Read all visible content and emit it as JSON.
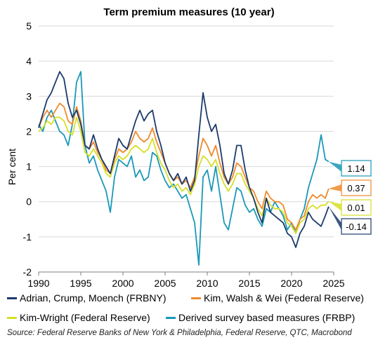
{
  "chart_data": {
    "type": "line",
    "title": "Term premium measures (10 year)",
    "ylabel": "Per cent",
    "xlabel": "",
    "xlim": [
      1990,
      2025
    ],
    "ylim": [
      -2,
      5
    ],
    "x_ticks": [
      "1990",
      "1995",
      "2000",
      "2005",
      "2010",
      "2015",
      "2020",
      "2025"
    ],
    "y_ticks": [
      "-2",
      "-1",
      "0",
      "1",
      "2",
      "3",
      "4",
      "5"
    ],
    "grid": "horizontal",
    "series": [
      {
        "name": "Adrian, Crump, Moench (FRBNY)",
        "color": "#1b3a6b",
        "end_label": "-0.14",
        "points": [
          [
            1990.0,
            2.1
          ],
          [
            1990.5,
            2.5
          ],
          [
            1991.0,
            2.9
          ],
          [
            1991.5,
            3.1
          ],
          [
            1992.0,
            3.4
          ],
          [
            1992.5,
            3.7
          ],
          [
            1993.0,
            3.5
          ],
          [
            1993.5,
            2.8
          ],
          [
            1994.0,
            2.4
          ],
          [
            1994.5,
            2.6
          ],
          [
            1995.0,
            2.2
          ],
          [
            1995.5,
            1.6
          ],
          [
            1996.0,
            1.5
          ],
          [
            1996.5,
            1.9
          ],
          [
            1997.0,
            1.5
          ],
          [
            1997.5,
            1.2
          ],
          [
            1998.0,
            1.0
          ],
          [
            1998.5,
            0.8
          ],
          [
            1999.0,
            1.3
          ],
          [
            1999.5,
            1.8
          ],
          [
            2000.0,
            1.6
          ],
          [
            2000.5,
            1.5
          ],
          [
            2001.0,
            1.9
          ],
          [
            2001.5,
            2.3
          ],
          [
            2002.0,
            2.6
          ],
          [
            2002.5,
            2.3
          ],
          [
            2003.0,
            2.5
          ],
          [
            2003.5,
            2.6
          ],
          [
            2004.0,
            2.0
          ],
          [
            2004.5,
            1.6
          ],
          [
            2005.0,
            1.1
          ],
          [
            2005.5,
            0.8
          ],
          [
            2006.0,
            0.6
          ],
          [
            2006.5,
            0.8
          ],
          [
            2007.0,
            0.5
          ],
          [
            2007.5,
            0.7
          ],
          [
            2008.0,
            0.3
          ],
          [
            2008.5,
            0.6
          ],
          [
            2009.0,
            1.9
          ],
          [
            2009.5,
            3.1
          ],
          [
            2010.0,
            2.4
          ],
          [
            2010.5,
            2.0
          ],
          [
            2011.0,
            2.2
          ],
          [
            2011.5,
            1.6
          ],
          [
            2012.0,
            0.8
          ],
          [
            2012.5,
            0.5
          ],
          [
            2013.0,
            0.9
          ],
          [
            2013.5,
            1.6
          ],
          [
            2014.0,
            1.6
          ],
          [
            2014.5,
            0.9
          ],
          [
            2015.0,
            0.4
          ],
          [
            2015.5,
            0.1
          ],
          [
            2016.0,
            -0.3
          ],
          [
            2016.5,
            -0.6
          ],
          [
            2017.0,
            0.1
          ],
          [
            2017.5,
            -0.3
          ],
          [
            2018.0,
            -0.4
          ],
          [
            2018.5,
            -0.5
          ],
          [
            2019.0,
            -0.6
          ],
          [
            2019.5,
            -0.9
          ],
          [
            2020.0,
            -1.0
          ],
          [
            2020.5,
            -1.3
          ],
          [
            2021.0,
            -0.9
          ],
          [
            2021.5,
            -0.7
          ],
          [
            2022.0,
            -0.3
          ],
          [
            2022.5,
            -0.5
          ],
          [
            2023.0,
            -0.6
          ],
          [
            2023.5,
            -0.7
          ],
          [
            2024.0,
            -0.4
          ],
          [
            2024.4,
            -0.14
          ]
        ]
      },
      {
        "name": "Kim, Walsh & Wei (Federal Reserve)",
        "color": "#f08a2c",
        "end_label": "0.37",
        "points": [
          [
            1990.0,
            2.1
          ],
          [
            1990.5,
            2.4
          ],
          [
            1991.0,
            2.6
          ],
          [
            1991.5,
            2.4
          ],
          [
            1992.0,
            2.6
          ],
          [
            1992.5,
            2.8
          ],
          [
            1993.0,
            2.7
          ],
          [
            1993.5,
            2.3
          ],
          [
            1994.0,
            2.2
          ],
          [
            1994.5,
            2.7
          ],
          [
            1995.0,
            2.3
          ],
          [
            1995.5,
            1.6
          ],
          [
            1996.0,
            1.5
          ],
          [
            1996.5,
            1.7
          ],
          [
            1997.0,
            1.4
          ],
          [
            1997.5,
            1.2
          ],
          [
            1998.0,
            0.9
          ],
          [
            1998.5,
            0.8
          ],
          [
            1999.0,
            1.2
          ],
          [
            1999.5,
            1.5
          ],
          [
            2000.0,
            1.4
          ],
          [
            2000.5,
            1.5
          ],
          [
            2001.0,
            1.7
          ],
          [
            2001.5,
            2.0
          ],
          [
            2002.0,
            1.8
          ],
          [
            2002.5,
            1.7
          ],
          [
            2003.0,
            1.8
          ],
          [
            2003.5,
            2.1
          ],
          [
            2004.0,
            1.7
          ],
          [
            2004.5,
            1.4
          ],
          [
            2005.0,
            1.1
          ],
          [
            2005.5,
            0.8
          ],
          [
            2006.0,
            0.6
          ],
          [
            2006.5,
            0.7
          ],
          [
            2007.0,
            0.5
          ],
          [
            2007.5,
            0.6
          ],
          [
            2008.0,
            0.4
          ],
          [
            2008.5,
            0.7
          ],
          [
            2009.0,
            1.3
          ],
          [
            2009.5,
            1.8
          ],
          [
            2010.0,
            1.6
          ],
          [
            2010.5,
            1.3
          ],
          [
            2011.0,
            1.6
          ],
          [
            2011.5,
            1.1
          ],
          [
            2012.0,
            0.7
          ],
          [
            2012.5,
            0.5
          ],
          [
            2013.0,
            0.7
          ],
          [
            2013.5,
            1.1
          ],
          [
            2014.0,
            1.0
          ],
          [
            2014.5,
            0.7
          ],
          [
            2015.0,
            0.4
          ],
          [
            2015.5,
            0.3
          ],
          [
            2016.0,
            0.0
          ],
          [
            2016.5,
            -0.2
          ],
          [
            2017.0,
            0.3
          ],
          [
            2017.5,
            0.1
          ],
          [
            2018.0,
            0.0
          ],
          [
            2018.5,
            0.0
          ],
          [
            2019.0,
            -0.1
          ],
          [
            2019.5,
            -0.5
          ],
          [
            2020.0,
            -0.6
          ],
          [
            2020.5,
            -0.8
          ],
          [
            2021.0,
            -0.5
          ],
          [
            2021.5,
            -0.4
          ],
          [
            2022.0,
            0.0
          ],
          [
            2022.5,
            0.2
          ],
          [
            2023.0,
            0.1
          ],
          [
            2023.5,
            0.2
          ],
          [
            2024.0,
            0.1
          ],
          [
            2024.4,
            0.37
          ]
        ]
      },
      {
        "name": "Kim-Wright (Federal Reserve)",
        "color": "#d6df28",
        "end_label": "0.01",
        "points": [
          [
            1990.0,
            2.0
          ],
          [
            1990.5,
            2.1
          ],
          [
            1991.0,
            2.3
          ],
          [
            1991.5,
            2.2
          ],
          [
            1992.0,
            2.4
          ],
          [
            1992.5,
            2.4
          ],
          [
            1993.0,
            2.3
          ],
          [
            1993.5,
            2.0
          ],
          [
            1994.0,
            1.9
          ],
          [
            1994.5,
            2.4
          ],
          [
            1995.0,
            2.0
          ],
          [
            1995.5,
            1.4
          ],
          [
            1996.0,
            1.3
          ],
          [
            1996.5,
            1.5
          ],
          [
            1997.0,
            1.3
          ],
          [
            1997.5,
            1.1
          ],
          [
            1998.0,
            0.8
          ],
          [
            1998.5,
            0.7
          ],
          [
            1999.0,
            1.1
          ],
          [
            1999.5,
            1.3
          ],
          [
            2000.0,
            1.2
          ],
          [
            2000.5,
            1.3
          ],
          [
            2001.0,
            1.5
          ],
          [
            2001.5,
            1.6
          ],
          [
            2002.0,
            1.5
          ],
          [
            2002.5,
            1.4
          ],
          [
            2003.0,
            1.5
          ],
          [
            2003.5,
            1.8
          ],
          [
            2004.0,
            1.4
          ],
          [
            2004.5,
            1.1
          ],
          [
            2005.0,
            0.9
          ],
          [
            2005.5,
            0.6
          ],
          [
            2006.0,
            0.4
          ],
          [
            2006.5,
            0.5
          ],
          [
            2007.0,
            0.3
          ],
          [
            2007.5,
            0.4
          ],
          [
            2008.0,
            0.2
          ],
          [
            2008.5,
            0.5
          ],
          [
            2009.0,
            1.0
          ],
          [
            2009.5,
            1.3
          ],
          [
            2010.0,
            1.2
          ],
          [
            2010.5,
            1.0
          ],
          [
            2011.0,
            1.2
          ],
          [
            2011.5,
            0.8
          ],
          [
            2012.0,
            0.5
          ],
          [
            2012.5,
            0.3
          ],
          [
            2013.0,
            0.5
          ],
          [
            2013.5,
            0.8
          ],
          [
            2014.0,
            0.8
          ],
          [
            2014.5,
            0.5
          ],
          [
            2015.0,
            0.3
          ],
          [
            2015.5,
            0.1
          ],
          [
            2016.0,
            -0.2
          ],
          [
            2016.5,
            -0.4
          ],
          [
            2017.0,
            0.1
          ],
          [
            2017.5,
            -0.1
          ],
          [
            2018.0,
            -0.2
          ],
          [
            2018.5,
            -0.2
          ],
          [
            2019.0,
            -0.3
          ],
          [
            2019.5,
            -0.6
          ],
          [
            2020.0,
            -0.7
          ],
          [
            2020.5,
            -0.9
          ],
          [
            2021.0,
            -0.6
          ],
          [
            2021.5,
            -0.5
          ],
          [
            2022.0,
            -0.2
          ],
          [
            2022.5,
            -0.1
          ],
          [
            2023.0,
            -0.2
          ],
          [
            2023.5,
            -0.1
          ],
          [
            2024.0,
            -0.1
          ],
          [
            2024.4,
            0.01
          ]
        ]
      },
      {
        "name": "Derived survey based measures (FRBP)",
        "color": "#1a98b8",
        "end_label": "1.14",
        "points": [
          [
            1990.0,
            2.2
          ],
          [
            1990.5,
            2.0
          ],
          [
            1991.0,
            2.4
          ],
          [
            1991.5,
            2.6
          ],
          [
            1992.0,
            2.3
          ],
          [
            1992.5,
            2.0
          ],
          [
            1993.0,
            1.9
          ],
          [
            1993.5,
            1.6
          ],
          [
            1994.0,
            2.2
          ],
          [
            1994.5,
            3.4
          ],
          [
            1995.0,
            3.7
          ],
          [
            1995.5,
            1.6
          ],
          [
            1996.0,
            1.1
          ],
          [
            1996.5,
            1.3
          ],
          [
            1997.0,
            0.9
          ],
          [
            1997.5,
            0.6
          ],
          [
            1998.0,
            0.3
          ],
          [
            1998.5,
            -0.3
          ],
          [
            1999.0,
            0.7
          ],
          [
            1999.5,
            1.2
          ],
          [
            2000.0,
            1.1
          ],
          [
            2000.5,
            1.0
          ],
          [
            2001.0,
            1.3
          ],
          [
            2001.5,
            0.7
          ],
          [
            2002.0,
            0.9
          ],
          [
            2002.5,
            0.6
          ],
          [
            2003.0,
            0.7
          ],
          [
            2003.5,
            1.4
          ],
          [
            2004.0,
            1.3
          ],
          [
            2004.5,
            0.9
          ],
          [
            2005.0,
            0.6
          ],
          [
            2005.5,
            0.4
          ],
          [
            2006.0,
            0.5
          ],
          [
            2006.5,
            0.3
          ],
          [
            2007.0,
            0.1
          ],
          [
            2007.5,
            0.2
          ],
          [
            2008.0,
            -0.2
          ],
          [
            2008.5,
            -0.6
          ],
          [
            2009.0,
            -1.8
          ],
          [
            2009.5,
            0.7
          ],
          [
            2010.0,
            0.9
          ],
          [
            2010.5,
            0.3
          ],
          [
            2011.0,
            1.0
          ],
          [
            2011.5,
            0.2
          ],
          [
            2012.0,
            -0.6
          ],
          [
            2012.5,
            -0.8
          ],
          [
            2013.0,
            -0.2
          ],
          [
            2013.5,
            0.4
          ],
          [
            2014.0,
            0.3
          ],
          [
            2014.5,
            -0.1
          ],
          [
            2015.0,
            -0.3
          ],
          [
            2015.5,
            -0.2
          ],
          [
            2016.0,
            -0.5
          ],
          [
            2016.5,
            -0.7
          ],
          [
            2017.0,
            -0.2
          ],
          [
            2017.5,
            -0.3
          ],
          [
            2018.0,
            0.0
          ],
          [
            2018.5,
            -0.2
          ],
          [
            2019.0,
            -0.4
          ],
          [
            2019.5,
            -0.8
          ],
          [
            2020.0,
            -0.6
          ],
          [
            2020.5,
            -0.9
          ],
          [
            2021.0,
            -0.5
          ],
          [
            2021.5,
            -0.2
          ],
          [
            2022.0,
            0.4
          ],
          [
            2022.5,
            0.8
          ],
          [
            2023.0,
            1.2
          ],
          [
            2023.5,
            1.9
          ],
          [
            2024.0,
            1.2
          ],
          [
            2024.4,
            1.14
          ]
        ]
      }
    ],
    "legend": {
      "placement": "bottom"
    },
    "source": "Source: Federal Reserve Banks of New York & Philadelphia, Federal Reserve, QTC, Macrobond"
  }
}
